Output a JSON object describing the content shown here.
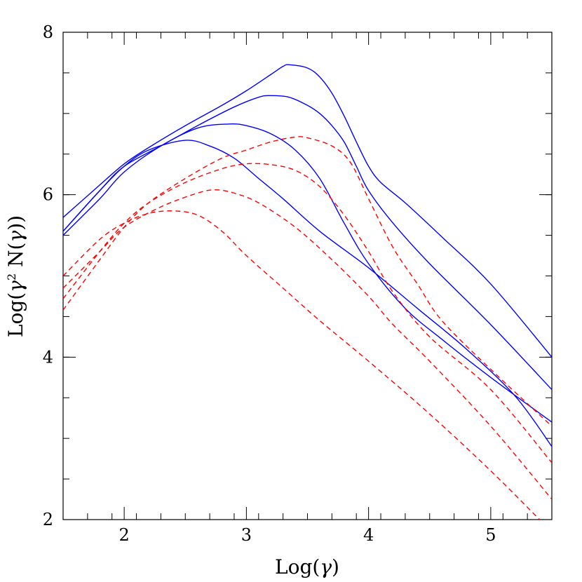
{
  "chart_data": {
    "type": "line",
    "title": "",
    "xlabel_prefix": "Log(",
    "xlabel_symbol": "γ",
    "xlabel_suffix": ")",
    "ylabel_prefix": "Log(",
    "ylabel_symbol": "γ",
    "ylabel_exp": "2",
    "ylabel_mid": " N(",
    "ylabel_symbol2": "γ",
    "ylabel_suffix": "))",
    "xlim": [
      1.5,
      5.5
    ],
    "ylim": [
      2,
      8
    ],
    "x_ticks": [
      2,
      3,
      4,
      5
    ],
    "y_ticks": [
      2,
      4,
      6,
      8
    ],
    "x_tick_labels": [
      "2",
      "3",
      "4",
      "5"
    ],
    "y_tick_labels": [
      "2",
      "4",
      "6",
      "8"
    ],
    "x_minor_step": 0.2,
    "y_minor_step": 0.5,
    "grid": false,
    "series": [
      {
        "style": "solid",
        "color": "#0000ff",
        "points": [
          [
            1.5,
            5.72
          ],
          [
            1.8,
            6.12
          ],
          [
            2.0,
            6.38
          ],
          [
            2.2,
            6.58
          ],
          [
            2.5,
            6.85
          ],
          [
            2.8,
            7.1
          ],
          [
            3.0,
            7.28
          ],
          [
            3.2,
            7.48
          ],
          [
            3.3,
            7.58
          ],
          [
            3.35,
            7.6
          ],
          [
            3.5,
            7.56
          ],
          [
            3.6,
            7.45
          ],
          [
            3.7,
            7.25
          ],
          [
            3.8,
            6.97
          ],
          [
            3.9,
            6.65
          ],
          [
            4.0,
            6.35
          ],
          [
            4.1,
            6.15
          ],
          [
            4.3,
            5.9
          ],
          [
            4.6,
            5.48
          ],
          [
            5.0,
            4.9
          ],
          [
            5.5,
            4.0
          ]
        ]
      },
      {
        "style": "solid",
        "color": "#0000ff",
        "points": [
          [
            1.5,
            5.55
          ],
          [
            1.8,
            6.05
          ],
          [
            2.0,
            6.35
          ],
          [
            2.3,
            6.6
          ],
          [
            2.6,
            6.85
          ],
          [
            2.9,
            7.08
          ],
          [
            3.1,
            7.2
          ],
          [
            3.2,
            7.22
          ],
          [
            3.35,
            7.2
          ],
          [
            3.5,
            7.1
          ],
          [
            3.6,
            7.0
          ],
          [
            3.7,
            6.85
          ],
          [
            3.8,
            6.65
          ],
          [
            3.9,
            6.35
          ],
          [
            4.0,
            6.05
          ],
          [
            4.2,
            5.65
          ],
          [
            4.5,
            5.15
          ],
          [
            5.0,
            4.4
          ],
          [
            5.5,
            3.6
          ]
        ]
      },
      {
        "style": "solid",
        "color": "#0000ff",
        "points": [
          [
            1.5,
            5.5
          ],
          [
            1.8,
            5.95
          ],
          [
            2.0,
            6.28
          ],
          [
            2.3,
            6.6
          ],
          [
            2.6,
            6.82
          ],
          [
            2.85,
            6.87
          ],
          [
            3.0,
            6.85
          ],
          [
            3.2,
            6.75
          ],
          [
            3.4,
            6.55
          ],
          [
            3.6,
            6.2
          ],
          [
            3.8,
            5.65
          ],
          [
            4.0,
            5.15
          ],
          [
            4.3,
            4.6
          ],
          [
            4.6,
            4.22
          ],
          [
            5.0,
            3.75
          ],
          [
            5.5,
            3.2
          ]
        ]
      },
      {
        "style": "solid",
        "color": "#0000ff",
        "points": [
          [
            1.5,
            5.55
          ],
          [
            1.8,
            6.05
          ],
          [
            2.0,
            6.35
          ],
          [
            2.2,
            6.55
          ],
          [
            2.5,
            6.67
          ],
          [
            2.7,
            6.6
          ],
          [
            2.9,
            6.45
          ],
          [
            3.1,
            6.2
          ],
          [
            3.3,
            5.95
          ],
          [
            3.6,
            5.55
          ],
          [
            4.0,
            5.1
          ],
          [
            4.4,
            4.6
          ],
          [
            4.8,
            4.1
          ],
          [
            5.2,
            3.52
          ],
          [
            5.5,
            2.9
          ]
        ]
      },
      {
        "style": "dashed",
        "color": "#ff0000",
        "points": [
          [
            1.5,
            4.58
          ],
          [
            1.8,
            5.2
          ],
          [
            2.0,
            5.6
          ],
          [
            2.2,
            5.9
          ],
          [
            2.5,
            6.2
          ],
          [
            2.8,
            6.45
          ],
          [
            3.0,
            6.55
          ],
          [
            3.2,
            6.65
          ],
          [
            3.4,
            6.71
          ],
          [
            3.5,
            6.7
          ],
          [
            3.7,
            6.6
          ],
          [
            3.85,
            6.4
          ],
          [
            4.0,
            5.95
          ],
          [
            4.2,
            5.35
          ],
          [
            4.4,
            4.9
          ],
          [
            4.6,
            4.45
          ],
          [
            5.0,
            3.85
          ],
          [
            5.5,
            3.15
          ]
        ]
      },
      {
        "style": "dashed",
        "color": "#ff0000",
        "points": [
          [
            1.5,
            4.72
          ],
          [
            1.8,
            5.3
          ],
          [
            2.0,
            5.65
          ],
          [
            2.2,
            5.9
          ],
          [
            2.5,
            6.15
          ],
          [
            2.8,
            6.32
          ],
          [
            3.0,
            6.38
          ],
          [
            3.2,
            6.37
          ],
          [
            3.4,
            6.3
          ],
          [
            3.6,
            6.1
          ],
          [
            3.8,
            5.75
          ],
          [
            4.0,
            5.3
          ],
          [
            4.2,
            4.8
          ],
          [
            4.5,
            4.25
          ],
          [
            5.0,
            3.6
          ],
          [
            5.5,
            2.7
          ]
        ]
      },
      {
        "style": "dashed",
        "color": "#ff0000",
        "points": [
          [
            1.5,
            4.85
          ],
          [
            1.8,
            5.3
          ],
          [
            2.0,
            5.6
          ],
          [
            2.3,
            5.85
          ],
          [
            2.6,
            6.02
          ],
          [
            2.75,
            6.06
          ],
          [
            2.9,
            6.02
          ],
          [
            3.1,
            5.9
          ],
          [
            3.4,
            5.6
          ],
          [
            3.7,
            5.2
          ],
          [
            4.0,
            4.75
          ],
          [
            4.2,
            4.4
          ],
          [
            4.5,
            3.95
          ],
          [
            5.0,
            3.15
          ],
          [
            5.5,
            2.25
          ]
        ]
      },
      {
        "style": "dashed",
        "color": "#ff0000",
        "points": [
          [
            1.5,
            5.0
          ],
          [
            1.8,
            5.45
          ],
          [
            2.0,
            5.65
          ],
          [
            2.2,
            5.77
          ],
          [
            2.4,
            5.8
          ],
          [
            2.6,
            5.75
          ],
          [
            2.8,
            5.55
          ],
          [
            3.0,
            5.25
          ],
          [
            3.3,
            4.85
          ],
          [
            3.6,
            4.45
          ],
          [
            4.0,
            3.95
          ],
          [
            4.5,
            3.3
          ],
          [
            5.0,
            2.6
          ],
          [
            5.4,
            2.0
          ]
        ]
      }
    ]
  }
}
